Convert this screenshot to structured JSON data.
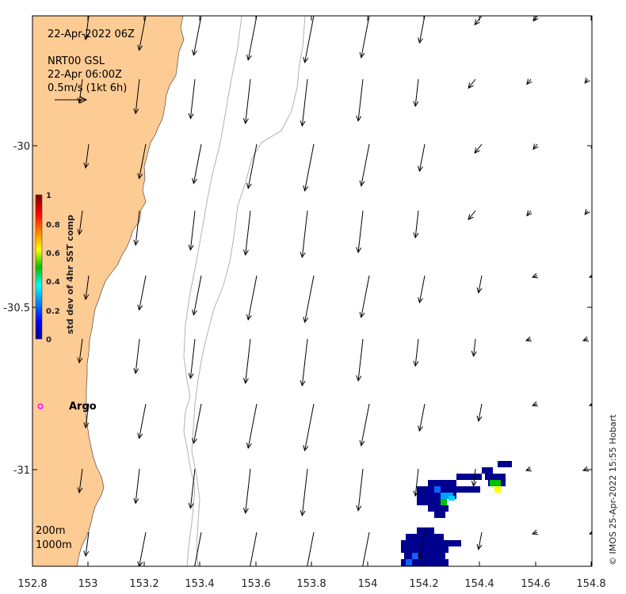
{
  "map": {
    "timestamp_title": "22-Apr-2022 06Z",
    "source_line1": "NRT00 GSL",
    "source_line2": "22-Apr 06:00Z",
    "scale_text": "0.5m/s (1kt 6h)",
    "credit": "© IMOS 25-Apr-2022 15:55 Hobart",
    "argo_label": "Argo",
    "contour_labels": [
      "200m",
      "1000m"
    ],
    "colors": {
      "land": "#fdcb94",
      "ocean": "#ffffff",
      "argo_marker": "#ff00ff",
      "bathymetry": "#aaaaaa",
      "arrow": "#000000"
    }
  },
  "axes": {
    "x_ticks": [
      "152.8",
      "153",
      "153.2",
      "153.4",
      "153.6",
      "153.8",
      "154",
      "154.2",
      "154.4",
      "154.6",
      "154.8"
    ],
    "y_ticks": [
      "-30",
      "-30.5",
      "-31"
    ],
    "xlim": [
      152.8,
      154.8
    ],
    "ylim": [
      -31.3,
      -29.6
    ]
  },
  "colorbar": {
    "label": "std dev of 4hr SST comp",
    "ticks": [
      "1",
      "0.8",
      "0.6",
      "0.4",
      "0.2",
      "0"
    ],
    "range": [
      0,
      1
    ]
  }
}
